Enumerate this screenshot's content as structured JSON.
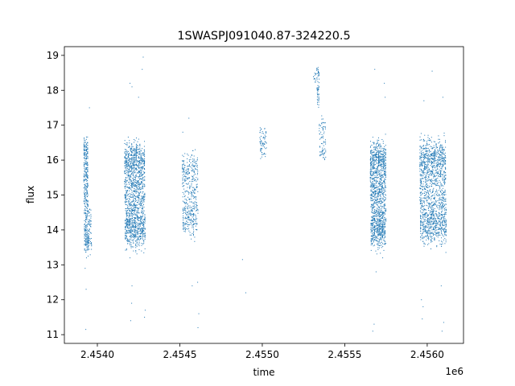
{
  "chart_data": {
    "type": "scatter",
    "title": "1SWASPJ091040.87-324220.5",
    "xlabel": "time",
    "ylabel": "flux",
    "x_offset_label": "1e6",
    "xlim": [
      2453750,
      2456170
    ],
    "ylim": [
      10.75,
      19.25
    ],
    "x_ticks": [
      2453950,
      2454450,
      2454950,
      2455450,
      2455950
    ],
    "x_tick_labels": [
      "2.4540",
      "2.4545",
      "2.4550",
      "2.4555",
      "2.4560"
    ],
    "y_ticks": [
      11,
      12,
      13,
      14,
      15,
      16,
      17,
      18,
      19
    ],
    "y_tick_labels": [
      "11",
      "12",
      "13",
      "14",
      "15",
      "16",
      "17",
      "18",
      "19"
    ],
    "grid": false,
    "marker_color": "#1f77b4",
    "segments": [
      {
        "x_start": 2453868,
        "x_end": 2453895,
        "y_center": 15.0,
        "amplitude": 1.35,
        "n": 420,
        "scatter": 0.35
      },
      {
        "x_start": 2453895,
        "x_end": 2453915,
        "y_center": 14.0,
        "amplitude": 0.4,
        "n": 60,
        "scatter": 0.3
      },
      {
        "x_start": 2454115,
        "x_end": 2454240,
        "y_center": 15.0,
        "amplitude": 1.15,
        "n": 1500,
        "scatter": 0.45
      },
      {
        "x_start": 2454465,
        "x_end": 2454560,
        "y_center": 15.0,
        "amplitude": 0.9,
        "n": 450,
        "scatter": 0.4
      },
      {
        "x_start": 2454935,
        "x_end": 2454975,
        "y_center": 16.5,
        "amplitude": 0.3,
        "n": 70,
        "scatter": 0.25
      },
      {
        "x_start": 2455260,
        "x_end": 2455275,
        "y_center": 18.35,
        "amplitude": 0.1,
        "n": 12,
        "scatter": 0.1
      },
      {
        "x_start": 2455280,
        "x_end": 2455295,
        "y_center": 18.1,
        "amplitude": 0.45,
        "n": 60,
        "scatter": 0.2
      },
      {
        "x_start": 2455295,
        "x_end": 2455335,
        "y_center": 16.6,
        "amplitude": 0.4,
        "n": 80,
        "scatter": 0.2
      },
      {
        "x_start": 2455605,
        "x_end": 2455700,
        "y_center": 15.0,
        "amplitude": 1.2,
        "n": 1300,
        "scatter": 0.4
      },
      {
        "x_start": 2455905,
        "x_end": 2456065,
        "y_center": 15.1,
        "amplitude": 1.15,
        "n": 1500,
        "scatter": 0.45
      }
    ],
    "outliers": [
      [
        2453880,
        11.15
      ],
      [
        2453882,
        12.3
      ],
      [
        2453876,
        12.9
      ],
      [
        2453884,
        13.2
      ],
      [
        2453902,
        17.5
      ],
      [
        2454148,
        18.2
      ],
      [
        2454160,
        18.1
      ],
      [
        2454152,
        11.4
      ],
      [
        2454158,
        11.9
      ],
      [
        2454200,
        17.8
      ],
      [
        2454222,
        18.6
      ],
      [
        2454228,
        18.95
      ],
      [
        2454236,
        11.5
      ],
      [
        2454240,
        11.7
      ],
      [
        2454148,
        13.2
      ],
      [
        2454160,
        12.4
      ],
      [
        2454505,
        17.2
      ],
      [
        2454560,
        11.2
      ],
      [
        2454565,
        11.6
      ],
      [
        2454558,
        12.5
      ],
      [
        2454525,
        12.4
      ],
      [
        2454468,
        16.8
      ],
      [
        2454830,
        13.15
      ],
      [
        2454850,
        12.2
      ],
      [
        2455620,
        11.1
      ],
      [
        2455628,
        11.3
      ],
      [
        2455632,
        18.6
      ],
      [
        2455640,
        12.8
      ],
      [
        2455680,
        13.2
      ],
      [
        2455690,
        18.2
      ],
      [
        2455695,
        17.8
      ],
      [
        2455920,
        11.45
      ],
      [
        2455925,
        11.8
      ],
      [
        2455930,
        17.7
      ],
      [
        2455980,
        18.55
      ],
      [
        2456040,
        11.1
      ],
      [
        2456045,
        17.8
      ],
      [
        2456050,
        11.35
      ],
      [
        2456035,
        12.4
      ],
      [
        2455915,
        12.0
      ]
    ]
  }
}
